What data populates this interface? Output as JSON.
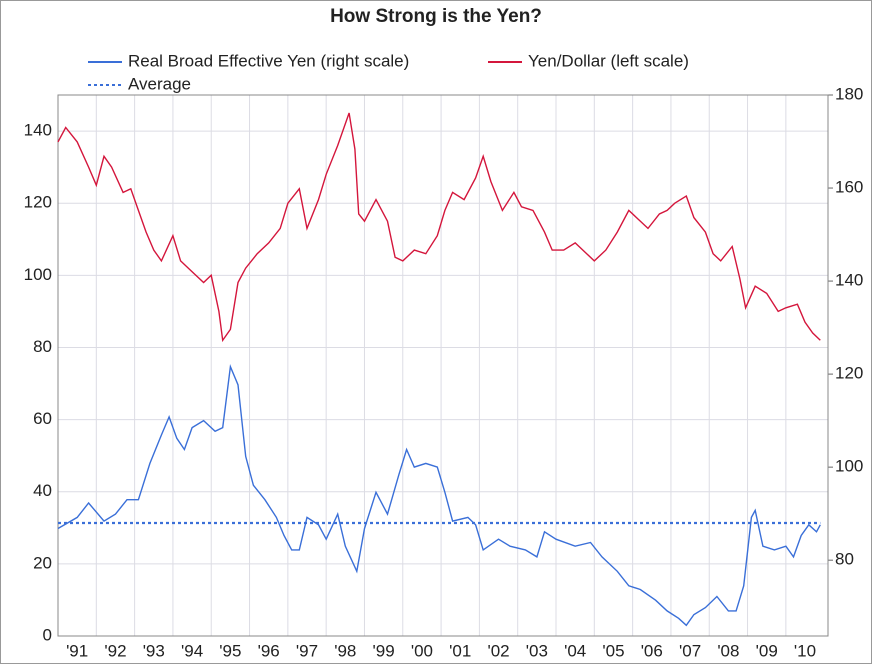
{
  "chart_data": {
    "type": "line",
    "title": "How Strong is the Yen?",
    "xlim": [
      1991,
      2011.1
    ],
    "xticks": [
      {
        "value": 1991,
        "label": "'91"
      },
      {
        "value": 1992,
        "label": "'92"
      },
      {
        "value": 1993,
        "label": "'93"
      },
      {
        "value": 1994,
        "label": "'94"
      },
      {
        "value": 1995,
        "label": "'95"
      },
      {
        "value": 1996,
        "label": "'96"
      },
      {
        "value": 1997,
        "label": "'97"
      },
      {
        "value": 1998,
        "label": "'98"
      },
      {
        "value": 1999,
        "label": "'99"
      },
      {
        "value": 2000,
        "label": "'00"
      },
      {
        "value": 2001,
        "label": "'01"
      },
      {
        "value": 2002,
        "label": "'02"
      },
      {
        "value": 2003,
        "label": "'03"
      },
      {
        "value": 2004,
        "label": "'04"
      },
      {
        "value": 2005,
        "label": "'05"
      },
      {
        "value": 2006,
        "label": "'06"
      },
      {
        "value": 2007,
        "label": "'07"
      },
      {
        "value": 2008,
        "label": "'08"
      },
      {
        "value": 2009,
        "label": "'09"
      },
      {
        "value": 2010,
        "label": "'10"
      }
    ],
    "ylim": [
      0,
      150
    ],
    "yticks": [
      0,
      20,
      40,
      60,
      80,
      100,
      120,
      140
    ],
    "y2lim": [
      63.7,
      180
    ],
    "y2ticks": [
      80,
      100,
      120,
      140,
      160,
      180
    ],
    "grid": true,
    "series": [
      {
        "name": "Real Broad Effective Yen (right scale)",
        "color": "#3a6fd8",
        "axis": "y2",
        "style": "solid",
        "x": [
          1991.0,
          1991.5,
          1991.8,
          1992.2,
          1992.5,
          1992.8,
          1993.1,
          1993.4,
          1993.7,
          1993.9,
          1994.1,
          1994.3,
          1994.5,
          1994.8,
          1995.1,
          1995.3,
          1995.5,
          1995.7,
          1995.9,
          1996.1,
          1996.4,
          1996.7,
          1996.9,
          1997.1,
          1997.3,
          1997.5,
          1997.8,
          1998.0,
          1998.3,
          1998.5,
          1998.8,
          1999.0,
          1999.3,
          1999.6,
          1999.9,
          2000.1,
          2000.3,
          2000.6,
          2000.9,
          2001.1,
          2001.3,
          2001.7,
          2001.9,
          2002.1,
          2002.5,
          2002.8,
          2003.2,
          2003.5,
          2003.7,
          2004.0,
          2004.5,
          2004.9,
          2005.2,
          2005.6,
          2005.9,
          2006.2,
          2006.6,
          2006.9,
          2007.2,
          2007.4,
          2007.6,
          2007.9,
          2008.2,
          2008.5,
          2008.7,
          2008.9,
          2009.1,
          2009.2,
          2009.4,
          2009.7,
          2010.0,
          2010.2,
          2010.4,
          2010.6,
          2010.8,
          2010.9
        ],
        "values": [
          86.8,
          89.2,
          92.3,
          88.4,
          89.9,
          93.0,
          93.0,
          100.8,
          106.9,
          110.8,
          106.2,
          103.8,
          108.5,
          110.0,
          107.7,
          108.5,
          121.6,
          117.7,
          102.3,
          96.1,
          93.0,
          89.2,
          85.3,
          82.2,
          82.2,
          89.2,
          87.6,
          84.5,
          89.9,
          83.0,
          77.6,
          86.8,
          94.6,
          89.9,
          98.4,
          103.8,
          100.0,
          100.8,
          100.0,
          94.6,
          88.4,
          89.2,
          87.6,
          82.2,
          84.5,
          83.0,
          82.2,
          80.7,
          86.1,
          84.5,
          83.0,
          83.8,
          80.7,
          77.6,
          74.5,
          73.7,
          71.4,
          69.1,
          67.5,
          66.0,
          68.3,
          69.8,
          72.2,
          69.1,
          69.1,
          74.5,
          89.2,
          90.7,
          83.0,
          82.2,
          83.0,
          80.7,
          85.3,
          87.6,
          86.1,
          87.6
        ]
      },
      {
        "name": "Yen/Dollar (left scale)",
        "color": "#d4163c",
        "axis": "y",
        "style": "solid",
        "x": [
          1991.0,
          1991.2,
          1991.5,
          1991.8,
          1992.0,
          1992.2,
          1992.4,
          1992.7,
          1992.9,
          1993.1,
          1993.3,
          1993.5,
          1993.7,
          1994.0,
          1994.2,
          1994.5,
          1994.8,
          1995.0,
          1995.2,
          1995.3,
          1995.5,
          1995.7,
          1995.9,
          1996.2,
          1996.5,
          1996.8,
          1997.0,
          1997.3,
          1997.5,
          1997.8,
          1998.0,
          1998.3,
          1998.6,
          1998.75,
          1998.85,
          1999.0,
          1999.3,
          1999.6,
          1999.8,
          2000.0,
          2000.3,
          2000.6,
          2000.9,
          2001.1,
          2001.3,
          2001.6,
          2001.9,
          2002.1,
          2002.3,
          2002.6,
          2002.9,
          2003.1,
          2003.4,
          2003.7,
          2003.9,
          2004.2,
          2004.5,
          2004.8,
          2005.0,
          2005.3,
          2005.6,
          2005.9,
          2006.1,
          2006.4,
          2006.7,
          2006.9,
          2007.1,
          2007.4,
          2007.6,
          2007.9,
          2008.1,
          2008.3,
          2008.6,
          2008.8,
          2008.95,
          2009.2,
          2009.5,
          2009.8,
          2010.0,
          2010.3,
          2010.5,
          2010.7,
          2010.9
        ],
        "values": [
          137,
          141,
          137,
          130,
          125,
          133,
          130,
          123,
          124,
          118,
          112,
          107,
          104,
          111,
          104,
          101,
          98,
          100,
          90,
          82,
          85,
          98,
          102,
          106,
          109,
          113,
          120,
          124,
          113,
          121,
          128,
          136,
          145,
          135,
          117,
          115,
          121,
          115,
          105,
          104,
          107,
          106,
          111,
          118,
          123,
          121,
          127,
          133,
          126,
          118,
          123,
          119,
          118,
          112,
          107,
          107,
          109,
          106,
          104,
          107,
          112,
          118,
          116,
          113,
          117,
          118,
          120,
          122,
          116,
          112,
          106,
          104,
          108,
          99,
          91,
          97,
          95,
          90,
          91,
          92,
          87,
          84,
          82
        ]
      },
      {
        "name": "Average",
        "color": "#3a6fd8",
        "axis": "y2",
        "style": "dotted",
        "x": [
          1991.0,
          2010.9
        ],
        "values": [
          88.0,
          88.0
        ]
      }
    ]
  }
}
